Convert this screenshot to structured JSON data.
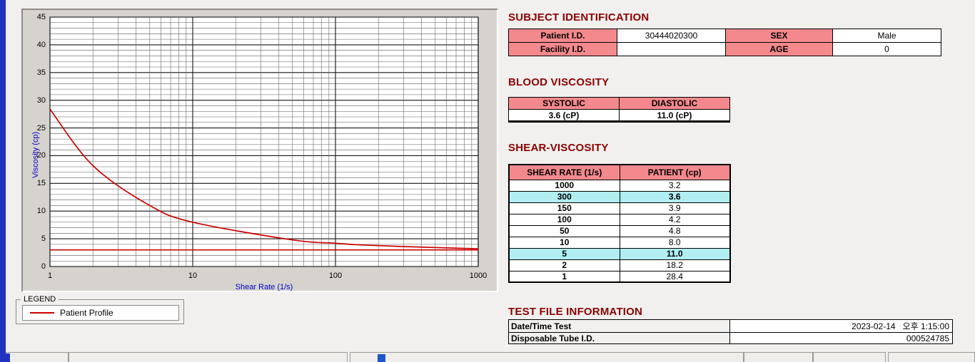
{
  "colors": {
    "heading": "#8b0000",
    "table_header_bg": "#f4898d",
    "highlight_bg": "#b0eef2",
    "curve": "#cc0000",
    "axis_label": "#0000c8",
    "left_strip": "#2033c0",
    "grid_minor": "#5a5a5a",
    "grid_major": "#151515"
  },
  "chart_data": {
    "type": "line",
    "title": "",
    "xlabel": "Shear Rate (1/s)",
    "ylabel": "Viscosity (cp)",
    "x_scale": "log",
    "xlim": [
      1,
      1000
    ],
    "ylim": [
      0,
      45
    ],
    "x_ticks": [
      1,
      10,
      100,
      1000
    ],
    "y_ticks": [
      0,
      5,
      10,
      15,
      20,
      25,
      30,
      35,
      40,
      45
    ],
    "grid": "on",
    "series": [
      {
        "name": "Patient Profile",
        "color": "#cc0000",
        "x": [
          1,
          2,
          5,
          10,
          50,
          100,
          150,
          300,
          1000
        ],
        "y": [
          28.4,
          18.2,
          11.0,
          8.0,
          4.8,
          4.2,
          3.9,
          3.6,
          3.2
        ]
      }
    ],
    "reference_line": {
      "y": 3.0,
      "color": "#cc0000"
    },
    "legend": {
      "title": "LEGEND",
      "position": "below-left",
      "entries": [
        {
          "label": "Patient Profile",
          "color": "#cc0000"
        }
      ]
    }
  },
  "subject_identification": {
    "heading": "SUBJECT IDENTIFICATION",
    "rows": [
      {
        "label1": "Patient I.D.",
        "value1": "30444020300",
        "label2": "SEX",
        "value2": "Male"
      },
      {
        "label1": "Facility I.D.",
        "value1": "",
        "label2": "AGE",
        "value2": "0"
      }
    ]
  },
  "blood_viscosity": {
    "heading": "BLOOD VISCOSITY",
    "columns": [
      "SYSTOLIC",
      "DIASTOLIC"
    ],
    "values": [
      "3.6 (cP)",
      "11.0 (cP)"
    ]
  },
  "shear_viscosity": {
    "heading": "SHEAR-VISCOSITY",
    "columns": [
      "SHEAR RATE (1/s)",
      "PATIENT (cp)"
    ],
    "rows": [
      {
        "shear_rate": "1000",
        "patient": "3.2",
        "highlight": false
      },
      {
        "shear_rate": "300",
        "patient": "3.6",
        "highlight": true
      },
      {
        "shear_rate": "150",
        "patient": "3.9",
        "highlight": false
      },
      {
        "shear_rate": "100",
        "patient": "4.2",
        "highlight": false
      },
      {
        "shear_rate": "50",
        "patient": "4.8",
        "highlight": false
      },
      {
        "shear_rate": "10",
        "patient": "8.0",
        "highlight": false
      },
      {
        "shear_rate": "5",
        "patient": "11.0",
        "highlight": true
      },
      {
        "shear_rate": "2",
        "patient": "18.2",
        "highlight": false
      },
      {
        "shear_rate": "1",
        "patient": "28.4",
        "highlight": false
      }
    ]
  },
  "test_file_information": {
    "heading": "TEST FILE INFORMATION",
    "rows": [
      {
        "label": "Date/Time Test",
        "value": "2023-02-14   오후 1:15:00"
      },
      {
        "label": "Disposable Tube I.D.",
        "value": "000524785"
      }
    ]
  }
}
